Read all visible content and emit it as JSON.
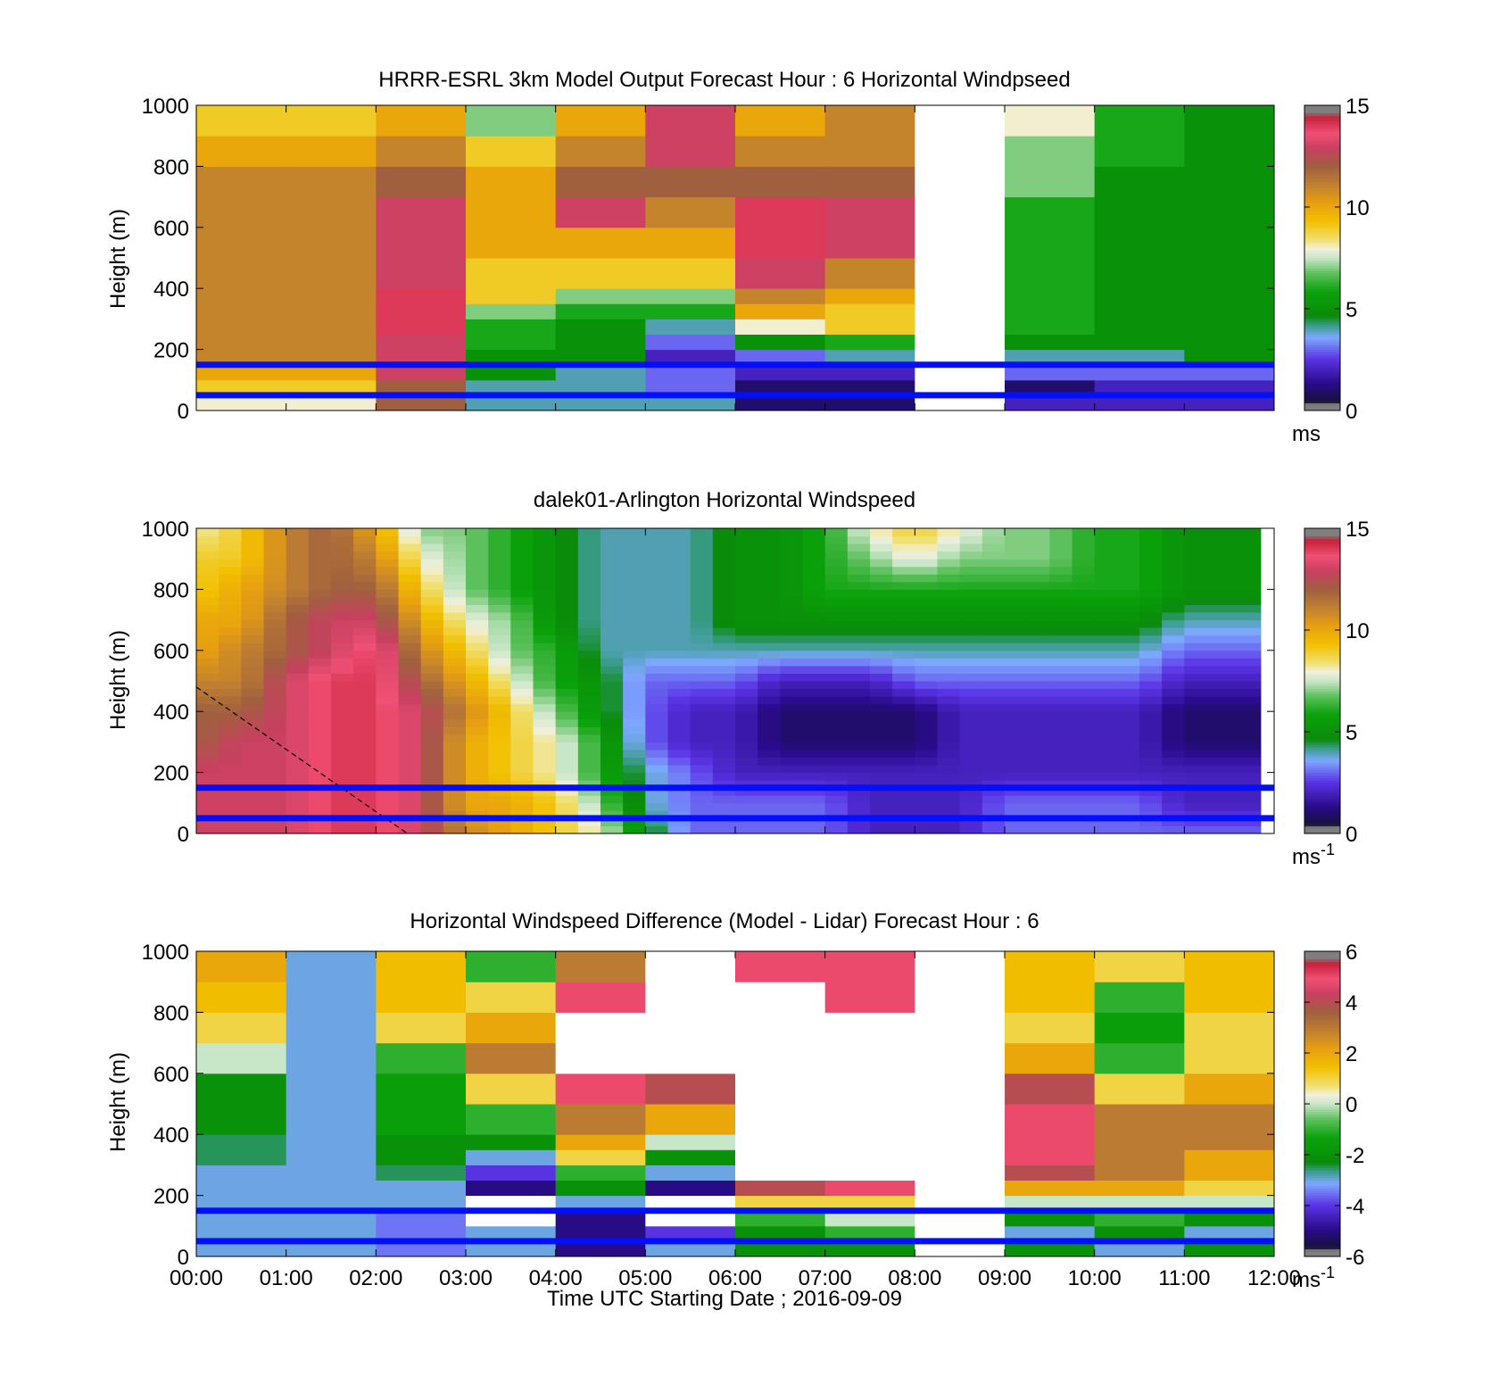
{
  "chart_data": [
    {
      "type": "heatmap",
      "title": "HRRR-ESRL 3km Model Output   Forecast Hour : 6 Horizontal Windpseed",
      "ylabel": "Height (m)",
      "xlabel": "",
      "ylim": [
        0,
        1000
      ],
      "yticks": [
        "0",
        "200",
        "400",
        "600",
        "800",
        "1000"
      ],
      "xlim": [
        0,
        12
      ],
      "xticks": [
        "00:00",
        "01:00",
        "02:00",
        "03:00",
        "04:00",
        "05:00",
        "06:00",
        "07:00",
        "08:00",
        "09:00",
        "10:00",
        "11:00",
        "12:00"
      ],
      "show_xtick_labels": false,
      "colorbar": {
        "min": 0,
        "max": 15,
        "ticks": [
          "0",
          "5",
          "10",
          "15"
        ],
        "unit": "ms",
        "unit_sup": ""
      },
      "reference_lines_m": [
        50,
        150
      ],
      "grid": false,
      "hours": [
        0,
        1,
        2,
        3,
        4,
        5,
        6,
        7,
        8,
        9,
        10,
        11
      ],
      "height_bins_m": [
        0,
        50,
        100,
        150,
        200,
        250,
        300,
        350,
        400,
        500,
        600,
        700,
        800,
        900
      ],
      "values": [
        [
          8,
          9,
          10,
          11,
          11,
          11,
          11,
          11,
          11,
          11,
          11,
          11,
          10,
          9
        ],
        [
          8,
          9,
          10,
          11,
          11,
          11,
          11,
          11,
          11,
          11,
          11,
          11,
          10,
          9
        ],
        [
          12,
          12,
          13,
          13,
          13,
          14,
          14,
          14,
          13,
          13,
          13,
          12,
          11,
          10
        ],
        [
          4,
          4,
          5,
          5,
          6,
          6,
          7,
          9,
          9,
          10,
          10,
          10,
          9,
          7
        ],
        [
          4,
          4,
          4,
          5,
          5,
          5,
          6,
          7,
          9,
          10,
          13,
          12,
          11,
          10
        ],
        [
          4,
          3,
          3,
          2,
          3,
          4,
          6,
          7,
          9,
          10,
          11,
          12,
          13,
          13
        ],
        [
          1,
          1,
          2,
          3,
          5,
          8,
          10,
          11,
          13,
          14,
          14,
          12,
          11,
          10
        ],
        [
          1,
          1,
          2,
          4,
          6,
          9,
          9,
          10,
          11,
          13,
          13,
          12,
          11,
          11
        ],
        [
          null,
          null,
          null,
          null,
          null,
          null,
          null,
          null,
          null,
          null,
          null,
          null,
          null,
          null
        ],
        [
          2,
          1,
          3,
          4,
          5,
          6,
          6,
          6,
          6,
          6,
          6,
          7,
          7,
          8
        ],
        [
          2,
          2,
          3,
          4,
          5,
          5,
          5,
          5,
          5,
          5,
          5,
          5,
          6,
          6
        ],
        [
          2,
          2,
          3,
          5,
          5,
          5,
          5,
          5,
          5,
          5,
          5,
          5,
          5,
          5
        ]
      ]
    },
    {
      "type": "heatmap",
      "title": "dalek01-Arlington  Horizontal Windspeed",
      "ylabel": "Height (m)",
      "xlabel": "",
      "ylim": [
        0,
        1000
      ],
      "yticks": [
        "0",
        "200",
        "400",
        "600",
        "800",
        "1000"
      ],
      "xlim": [
        0,
        12
      ],
      "xticks": [
        "00:00",
        "01:00",
        "02:00",
        "03:00",
        "04:00",
        "05:00",
        "06:00",
        "07:00",
        "08:00",
        "09:00",
        "10:00",
        "11:00",
        "12:00"
      ],
      "show_xtick_labels": false,
      "colorbar": {
        "min": 0,
        "max": 15,
        "ticks": [
          "0",
          "5",
          "10",
          "15"
        ],
        "unit": "ms",
        "unit_sup": "-1"
      },
      "reference_lines_m": [
        50,
        150
      ],
      "grid": false,
      "data_end_hour": 11.85,
      "time_step_h": 0.25,
      "value_anchors_hours": [
        0,
        0.5,
        1,
        1.5,
        2,
        2.5,
        3,
        3.5,
        4,
        4.5,
        5,
        5.5,
        6,
        6.5,
        7,
        7.5,
        8,
        8.5,
        9,
        9.5,
        10,
        10.5,
        11,
        11.5,
        11.85
      ],
      "value_anchors_heights_m": [
        0,
        100,
        200,
        300,
        400,
        500,
        600,
        700,
        800,
        900,
        1000
      ],
      "values": [
        [
          13,
          13,
          13,
          12,
          12,
          11,
          10,
          10,
          9,
          9,
          8
        ],
        [
          13,
          13,
          13,
          13,
          12,
          11,
          11,
          10,
          10,
          9,
          9
        ],
        [
          13,
          13,
          13,
          13,
          13,
          13,
          12,
          12,
          11,
          11,
          11
        ],
        [
          14,
          14,
          14,
          14,
          14,
          14,
          13,
          13,
          12,
          12,
          12
        ],
        [
          14,
          14,
          14,
          14,
          14,
          14,
          14,
          13,
          12,
          11,
          10
        ],
        [
          13,
          13,
          13,
          13,
          13,
          12,
          11,
          10,
          9,
          8,
          7
        ],
        [
          11,
          10,
          10,
          10,
          11,
          10,
          9,
          8,
          7,
          7,
          7
        ],
        [
          10,
          10,
          9,
          9,
          9,
          8,
          7,
          7,
          6,
          6,
          6
        ],
        [
          9,
          9,
          8,
          8,
          7,
          6,
          6,
          5,
          5,
          5,
          5
        ],
        [
          8,
          7,
          6,
          6,
          5,
          5,
          4,
          4,
          4,
          4,
          4
        ],
        [
          5,
          4,
          4,
          3,
          3,
          3,
          4,
          4,
          4,
          4,
          4
        ],
        [
          3,
          3,
          3,
          2,
          2,
          3,
          4,
          4,
          4,
          4,
          4
        ],
        [
          3,
          3,
          2,
          2,
          2,
          3,
          4,
          5,
          5,
          5,
          5
        ],
        [
          3,
          3,
          2,
          1,
          1,
          2,
          4,
          5,
          5,
          5,
          5
        ],
        [
          3,
          3,
          2,
          1,
          1,
          2,
          4,
          5,
          6,
          6,
          6
        ],
        [
          2,
          2,
          2,
          1,
          1,
          2,
          4,
          5,
          6,
          7,
          8
        ],
        [
          2,
          2,
          2,
          1,
          1,
          3,
          4,
          5,
          6,
          8,
          9
        ],
        [
          2,
          2,
          2,
          2,
          2,
          3,
          4,
          5,
          6,
          7,
          8
        ],
        [
          3,
          3,
          2,
          2,
          2,
          3,
          4,
          5,
          6,
          7,
          7
        ],
        [
          3,
          3,
          2,
          2,
          2,
          3,
          4,
          5,
          6,
          7,
          7
        ],
        [
          3,
          3,
          2,
          2,
          2,
          3,
          4,
          5,
          6,
          6,
          6
        ],
        [
          3,
          3,
          2,
          2,
          2,
          3,
          4,
          5,
          6,
          6,
          6
        ],
        [
          3,
          2,
          2,
          1,
          1,
          2,
          3,
          4,
          5,
          5,
          5
        ],
        [
          3,
          2,
          2,
          1,
          1,
          2,
          3,
          4,
          5,
          5,
          5
        ],
        [
          3,
          2,
          2,
          1,
          1,
          2,
          3,
          4,
          5,
          5,
          5
        ]
      ],
      "overlay_line": {
        "from": [
          0,
          480
        ],
        "to": [
          2.35,
          0
        ]
      }
    },
    {
      "type": "heatmap",
      "title": "Horizontal Windspeed Difference (Model - Lidar) Forecast Hour : 6",
      "ylabel": "Height (m)",
      "xlabel": "Time UTC  Starting Date ; 2016-09-09",
      "ylim": [
        0,
        1000
      ],
      "yticks": [
        "0",
        "200",
        "400",
        "600",
        "800",
        "1000"
      ],
      "xlim": [
        0,
        12
      ],
      "xticks": [
        "00:00",
        "01:00",
        "02:00",
        "03:00",
        "04:00",
        "05:00",
        "06:00",
        "07:00",
        "08:00",
        "09:00",
        "10:00",
        "11:00",
        "12:00"
      ],
      "show_xtick_labels": true,
      "colorbar": {
        "min": -6,
        "max": 6,
        "ticks": [
          "-6",
          "-4",
          "-2",
          "0",
          "2",
          "4",
          "6"
        ],
        "unit": "ms",
        "unit_sup": "-1"
      },
      "reference_lines_m": [
        50,
        150
      ],
      "grid": false,
      "hours": [
        0,
        1,
        2,
        3,
        4,
        5,
        6,
        7,
        8,
        9,
        10,
        11
      ],
      "height_bins_m": [
        0,
        50,
        100,
        150,
        200,
        250,
        300,
        350,
        400,
        500,
        600,
        700,
        800,
        900
      ],
      "values": [
        [
          -3,
          -3,
          -3,
          -3,
          -3,
          -3,
          -2.5,
          -2.5,
          -2,
          -2,
          0,
          1,
          1.5,
          2
        ],
        [
          -3,
          -3,
          -3,
          -3,
          -3,
          -3,
          -3,
          -3,
          -3,
          -3,
          -3,
          -3,
          -3,
          -3
        ],
        [
          -3.5,
          -3.5,
          -3.5,
          -3,
          -3,
          -2.5,
          -2,
          -2,
          -1.5,
          -1.5,
          -1,
          1,
          1.5,
          1.5
        ],
        [
          -3,
          -3,
          null,
          null,
          -5,
          -4,
          -3,
          -2,
          -1,
          1,
          3,
          2,
          1,
          -1
        ],
        [
          -5,
          -5,
          -5,
          -3,
          -2,
          -1,
          1,
          2,
          3,
          5,
          null,
          null,
          5,
          3
        ],
        [
          -3,
          -4,
          null,
          null,
          -5,
          -3,
          -2,
          0,
          2,
          4,
          null,
          null,
          null,
          null
        ],
        [
          -2,
          -2,
          -1,
          1,
          4,
          null,
          null,
          null,
          null,
          null,
          null,
          null,
          null,
          5
        ],
        [
          -2,
          -1,
          0,
          1,
          5,
          null,
          null,
          null,
          null,
          null,
          null,
          null,
          5,
          5
        ],
        [
          null,
          null,
          null,
          null,
          null,
          null,
          null,
          null,
          null,
          null,
          null,
          null,
          null,
          null
        ],
        [
          -2,
          -3,
          -2,
          0,
          2,
          4,
          5,
          5,
          5,
          4,
          2,
          1,
          1.5,
          1.5
        ],
        [
          -3,
          -2,
          -1,
          0,
          2,
          3,
          3,
          3,
          3,
          1,
          -1,
          -1.5,
          -1,
          1
        ],
        [
          -2,
          -3,
          -2,
          0,
          1,
          2,
          2,
          3,
          3,
          2,
          1,
          1,
          1.5,
          1.5
        ]
      ]
    }
  ]
}
